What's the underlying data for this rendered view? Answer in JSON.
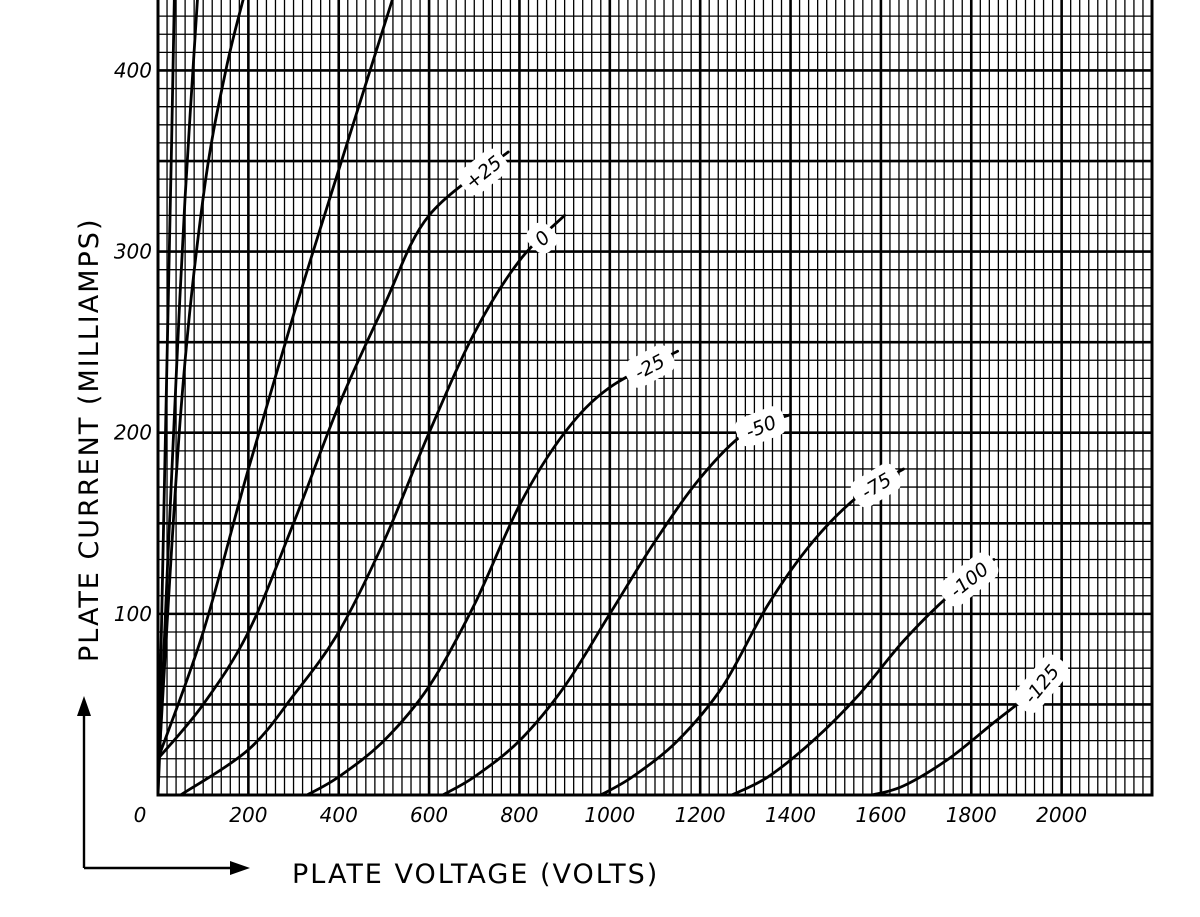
{
  "chart_data": {
    "type": "line",
    "title": "",
    "xlabel": "PLATE VOLTAGE (VOLTS)",
    "ylabel": "PLATE CURRENT (MILLIAMPS)",
    "xlim": [
      0,
      2200
    ],
    "ylim": [
      0,
      440
    ],
    "xticks": [
      {
        "value": 0,
        "label": "0"
      },
      {
        "value": 200,
        "label": "200"
      },
      {
        "value": 400,
        "label": "400"
      },
      {
        "value": 600,
        "label": "600"
      },
      {
        "value": 800,
        "label": "800"
      },
      {
        "value": 1000,
        "label": "1000"
      },
      {
        "value": 1200,
        "label": "1200"
      },
      {
        "value": 1400,
        "label": "1400"
      },
      {
        "value": 1600,
        "label": "1600"
      },
      {
        "value": 1800,
        "label": "1800"
      },
      {
        "value": 2000,
        "label": "2000"
      }
    ],
    "yticks": [
      {
        "value": 100,
        "label": "100"
      },
      {
        "value": 200,
        "label": "200"
      },
      {
        "value": 300,
        "label": "300"
      },
      {
        "value": 400,
        "label": "400"
      }
    ],
    "grid": true,
    "series": [
      {
        "points": [
          [
            0,
            0
          ],
          [
            10,
            120
          ],
          [
            20,
            240
          ],
          [
            30,
            360
          ],
          [
            37,
            450
          ]
        ]
      },
      {
        "points": [
          [
            0,
            0
          ],
          [
            20,
            120
          ],
          [
            40,
            230
          ],
          [
            60,
            330
          ],
          [
            90,
            450
          ]
        ]
      },
      {
        "points": [
          [
            0,
            10
          ],
          [
            50,
            210
          ],
          [
            100,
            330
          ],
          [
            150,
            400
          ],
          [
            200,
            450
          ]
        ]
      },
      {
        "points": [
          [
            0,
            20
          ],
          [
            100,
            90
          ],
          [
            200,
            180
          ],
          [
            300,
            265
          ],
          [
            400,
            345
          ],
          [
            520,
            440
          ]
        ]
      },
      {
        "name": "+25",
        "points": [
          [
            0,
            20
          ],
          [
            100,
            50
          ],
          [
            200,
            90
          ],
          [
            300,
            150
          ],
          [
            400,
            215
          ],
          [
            500,
            270
          ],
          [
            600,
            320
          ],
          [
            775,
            355
          ]
        ]
      },
      {
        "name": "0",
        "points": [
          [
            50,
            0
          ],
          [
            200,
            25
          ],
          [
            300,
            55
          ],
          [
            400,
            90
          ],
          [
            500,
            140
          ],
          [
            600,
            200
          ],
          [
            700,
            255
          ],
          [
            800,
            295
          ],
          [
            900,
            320
          ]
        ]
      },
      {
        "name": "-25",
        "points": [
          [
            330,
            0
          ],
          [
            400,
            10
          ],
          [
            500,
            30
          ],
          [
            600,
            60
          ],
          [
            700,
            105
          ],
          [
            800,
            160
          ],
          [
            900,
            200
          ],
          [
            1000,
            225
          ],
          [
            1150,
            245
          ]
        ]
      },
      {
        "name": "-50",
        "points": [
          [
            630,
            0
          ],
          [
            700,
            10
          ],
          [
            800,
            30
          ],
          [
            900,
            60
          ],
          [
            1000,
            100
          ],
          [
            1100,
            140
          ],
          [
            1200,
            175
          ],
          [
            1300,
            200
          ],
          [
            1400,
            210
          ]
        ]
      },
      {
        "name": "-75",
        "points": [
          [
            980,
            0
          ],
          [
            1050,
            10
          ],
          [
            1150,
            30
          ],
          [
            1250,
            60
          ],
          [
            1350,
            105
          ],
          [
            1450,
            140
          ],
          [
            1550,
            165
          ],
          [
            1650,
            180
          ]
        ]
      },
      {
        "name": "-100",
        "points": [
          [
            1270,
            0
          ],
          [
            1350,
            10
          ],
          [
            1450,
            30
          ],
          [
            1550,
            55
          ],
          [
            1650,
            85
          ],
          [
            1750,
            110
          ],
          [
            1850,
            130
          ]
        ]
      },
      {
        "name": "-125",
        "points": [
          [
            1580,
            0
          ],
          [
            1650,
            5
          ],
          [
            1750,
            20
          ],
          [
            1850,
            40
          ],
          [
            1950,
            60
          ],
          [
            2000,
            75
          ]
        ]
      }
    ]
  }
}
